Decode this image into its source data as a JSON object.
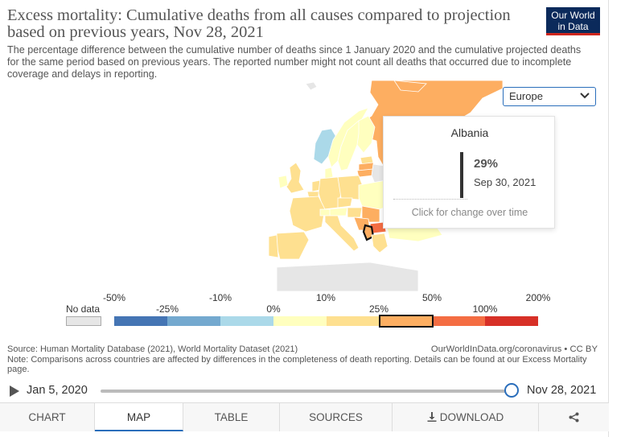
{
  "header": {
    "title": "Excess mortality: Cumulative deaths from all causes compared to projection based on previous years, Nov 28, 2021",
    "subtitle": "The percentage difference between the cumulative number of deaths since 1 January 2020 and the cumulative projected deaths for the same period based on previous years. The reported number might not count all deaths that occurred due to incomplete coverage and delays in reporting.",
    "logo_line1": "Our World",
    "logo_line2": "in Data"
  },
  "region_select": {
    "value": "Europe",
    "icon": "chevron-down-icon"
  },
  "tooltip": {
    "country": "Albania",
    "value": "29%",
    "date": "Sep 30, 2021",
    "hint": "Click for change over time"
  },
  "legend": {
    "no_data_label": "No data",
    "top_labels": [
      "-50%",
      "-10%",
      "10%",
      "50%",
      "200%"
    ],
    "bottom_labels": [
      "-25%",
      "0%",
      "25%",
      "100%"
    ],
    "bins": [
      {
        "from": "-50%",
        "to": "-25%",
        "color": "#4575b4"
      },
      {
        "from": "-25%",
        "to": "-10%",
        "color": "#74a9cf"
      },
      {
        "from": "-10%",
        "to": "0%",
        "color": "#abd9e9"
      },
      {
        "from": "0%",
        "to": "10%",
        "color": "#ffffbf"
      },
      {
        "from": "10%",
        "to": "25%",
        "color": "#fee090"
      },
      {
        "from": "25%",
        "to": "50%",
        "color": "#fdae61"
      },
      {
        "from": "50%",
        "to": "100%",
        "color": "#f46d43"
      },
      {
        "from": "100%",
        "to": "200%",
        "color": "#d73027"
      }
    ],
    "highlighted_bin": "25%-50%",
    "no_data_color": "#e6e6e6"
  },
  "source": {
    "line1": "Source: Human Mortality Database (2021), World Mortality Dataset (2021)",
    "line2": "Note: Comparisons across countries are affected by differences in the completeness of death reporting. Details can be found at our Excess Mortality page.",
    "right": "OurWorldInData.org/coronavirus • CC BY"
  },
  "timeline": {
    "start": "Jan 5, 2020",
    "end": "Nov 28, 2021",
    "position_fraction": 1.0
  },
  "tabs": [
    {
      "label": "CHART"
    },
    {
      "label": "MAP",
      "active": true
    },
    {
      "label": "TABLE"
    },
    {
      "label": "SOURCES"
    },
    {
      "label": "DOWNLOAD"
    }
  ],
  "map": {
    "highlighted_country": "Albania",
    "country_fill": {
      "Russia": "#fdae61",
      "Iceland": "#e6e6e6",
      "Norway": "#ffffbf",
      "Sweden": "#ffffbf",
      "Finland": "#ffffbf",
      "United Kingdom": "#fee090",
      "Ireland": "#ffffbf",
      "France": "#fee090",
      "Spain": "#fee090",
      "Portugal": "#fee090",
      "Germany": "#fee090",
      "Poland": "#fee090",
      "Italy": "#fee090",
      "Ukraine": "#ffffbf",
      "Belarus": "#e6e6e6",
      "Bulgaria": "#f46d43",
      "Serbia": "#fdae61",
      "Albania": "#fdae61",
      "Greece": "#fee090",
      "Turkey": "#ffffbf",
      "Estonia": "#fee090",
      "Latvia": "#fdae61",
      "Lithuania": "#fdae61",
      "Greenland": "#abd9e9"
    }
  }
}
